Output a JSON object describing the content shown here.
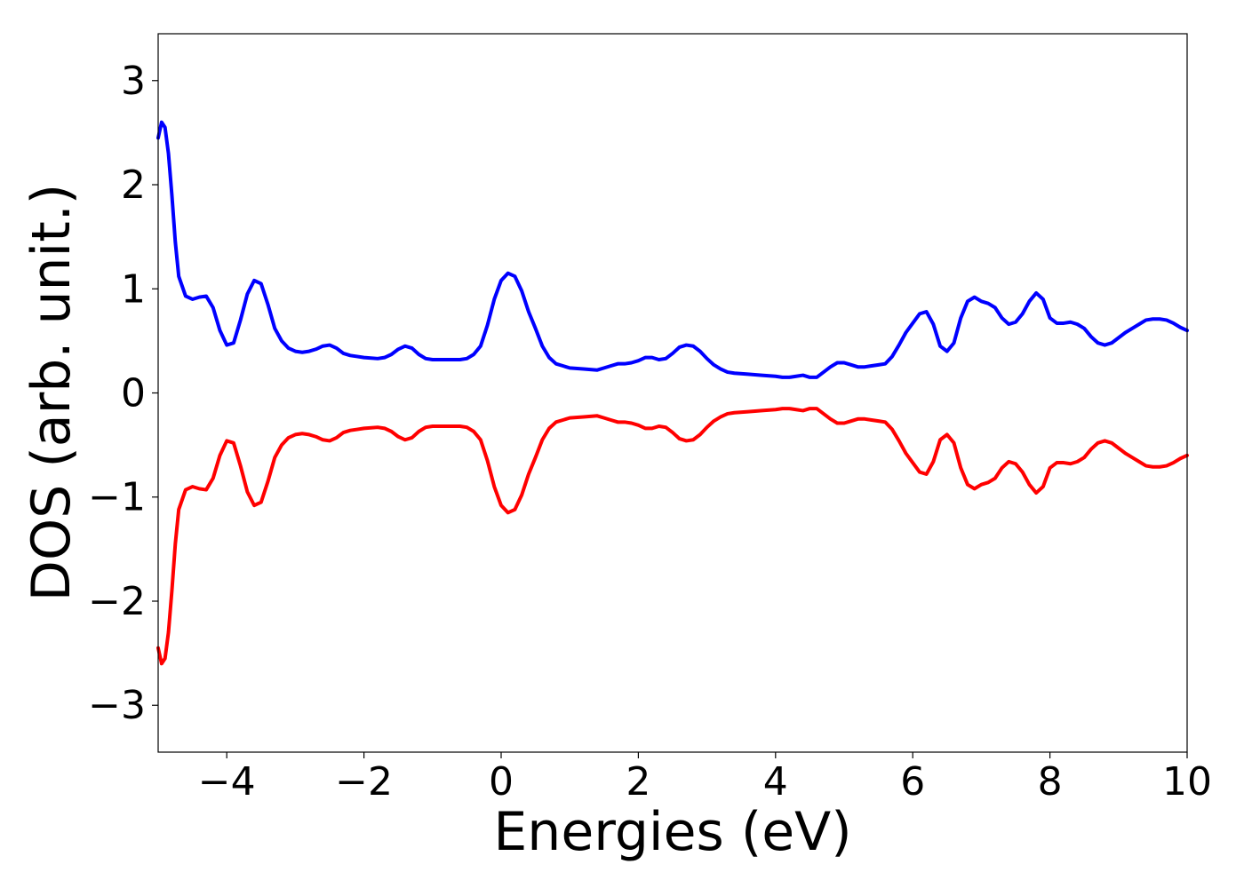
{
  "chart_data": {
    "type": "line",
    "title": "",
    "xlabel": "Energies (eV)",
    "ylabel": "DOS (arb. unit.)",
    "xlim": [
      -5,
      10
    ],
    "ylim": [
      -3.45,
      3.45
    ],
    "grid": false,
    "legend": "none",
    "x_ticks": [
      {
        "value": -4,
        "label": "−4"
      },
      {
        "value": -2,
        "label": "−2"
      },
      {
        "value": 0,
        "label": "0"
      },
      {
        "value": 2,
        "label": "2"
      },
      {
        "value": 4,
        "label": "4"
      },
      {
        "value": 6,
        "label": "6"
      },
      {
        "value": 8,
        "label": "8"
      },
      {
        "value": 10,
        "label": "10"
      }
    ],
    "y_ticks": [
      {
        "value": 3,
        "label": "3"
      },
      {
        "value": 2,
        "label": "2"
      },
      {
        "value": 1,
        "label": "1"
      },
      {
        "value": 0,
        "label": "0"
      },
      {
        "value": -1,
        "label": "−1"
      },
      {
        "value": -2,
        "label": "−2"
      },
      {
        "value": -3,
        "label": "−3"
      }
    ],
    "series": [
      {
        "color": "#0000ff",
        "points": [
          [
            -5.0,
            2.45
          ],
          [
            -4.95,
            2.6
          ],
          [
            -4.9,
            2.55
          ],
          [
            -4.85,
            2.3
          ],
          [
            -4.8,
            1.9
          ],
          [
            -4.75,
            1.45
          ],
          [
            -4.7,
            1.12
          ],
          [
            -4.6,
            0.93
          ],
          [
            -4.5,
            0.9
          ],
          [
            -4.4,
            0.92
          ],
          [
            -4.3,
            0.93
          ],
          [
            -4.2,
            0.82
          ],
          [
            -4.1,
            0.6
          ],
          [
            -4.0,
            0.46
          ],
          [
            -3.9,
            0.48
          ],
          [
            -3.8,
            0.7
          ],
          [
            -3.7,
            0.95
          ],
          [
            -3.6,
            1.08
          ],
          [
            -3.5,
            1.05
          ],
          [
            -3.4,
            0.85
          ],
          [
            -3.3,
            0.62
          ],
          [
            -3.2,
            0.5
          ],
          [
            -3.1,
            0.43
          ],
          [
            -3.0,
            0.4
          ],
          [
            -2.9,
            0.39
          ],
          [
            -2.8,
            0.4
          ],
          [
            -2.7,
            0.42
          ],
          [
            -2.6,
            0.45
          ],
          [
            -2.5,
            0.46
          ],
          [
            -2.4,
            0.43
          ],
          [
            -2.3,
            0.38
          ],
          [
            -2.2,
            0.36
          ],
          [
            -2.1,
            0.35
          ],
          [
            -2.0,
            0.34
          ],
          [
            -1.8,
            0.33
          ],
          [
            -1.7,
            0.34
          ],
          [
            -1.6,
            0.37
          ],
          [
            -1.5,
            0.42
          ],
          [
            -1.4,
            0.45
          ],
          [
            -1.3,
            0.43
          ],
          [
            -1.2,
            0.37
          ],
          [
            -1.1,
            0.33
          ],
          [
            -1.0,
            0.32
          ],
          [
            -0.8,
            0.32
          ],
          [
            -0.6,
            0.32
          ],
          [
            -0.5,
            0.33
          ],
          [
            -0.4,
            0.37
          ],
          [
            -0.3,
            0.45
          ],
          [
            -0.2,
            0.65
          ],
          [
            -0.1,
            0.9
          ],
          [
            0.0,
            1.08
          ],
          [
            0.1,
            1.15
          ],
          [
            0.2,
            1.12
          ],
          [
            0.3,
            0.98
          ],
          [
            0.4,
            0.78
          ],
          [
            0.5,
            0.62
          ],
          [
            0.6,
            0.45
          ],
          [
            0.7,
            0.34
          ],
          [
            0.8,
            0.28
          ],
          [
            0.9,
            0.26
          ],
          [
            1.0,
            0.24
          ],
          [
            1.2,
            0.23
          ],
          [
            1.4,
            0.22
          ],
          [
            1.5,
            0.24
          ],
          [
            1.6,
            0.26
          ],
          [
            1.7,
            0.28
          ],
          [
            1.8,
            0.28
          ],
          [
            1.9,
            0.29
          ],
          [
            2.0,
            0.31
          ],
          [
            2.1,
            0.34
          ],
          [
            2.2,
            0.34
          ],
          [
            2.3,
            0.32
          ],
          [
            2.4,
            0.33
          ],
          [
            2.5,
            0.38
          ],
          [
            2.6,
            0.44
          ],
          [
            2.7,
            0.46
          ],
          [
            2.8,
            0.45
          ],
          [
            2.9,
            0.4
          ],
          [
            3.0,
            0.33
          ],
          [
            3.1,
            0.27
          ],
          [
            3.2,
            0.23
          ],
          [
            3.3,
            0.2
          ],
          [
            3.4,
            0.19
          ],
          [
            3.6,
            0.18
          ],
          [
            3.8,
            0.17
          ],
          [
            4.0,
            0.16
          ],
          [
            4.1,
            0.15
          ],
          [
            4.2,
            0.15
          ],
          [
            4.3,
            0.16
          ],
          [
            4.4,
            0.17
          ],
          [
            4.5,
            0.15
          ],
          [
            4.6,
            0.15
          ],
          [
            4.7,
            0.2
          ],
          [
            4.8,
            0.25
          ],
          [
            4.9,
            0.29
          ],
          [
            5.0,
            0.29
          ],
          [
            5.1,
            0.27
          ],
          [
            5.2,
            0.25
          ],
          [
            5.3,
            0.25
          ],
          [
            5.4,
            0.26
          ],
          [
            5.5,
            0.27
          ],
          [
            5.6,
            0.28
          ],
          [
            5.7,
            0.35
          ],
          [
            5.8,
            0.46
          ],
          [
            5.9,
            0.58
          ],
          [
            6.0,
            0.67
          ],
          [
            6.1,
            0.76
          ],
          [
            6.2,
            0.78
          ],
          [
            6.3,
            0.66
          ],
          [
            6.4,
            0.45
          ],
          [
            6.5,
            0.4
          ],
          [
            6.6,
            0.48
          ],
          [
            6.7,
            0.72
          ],
          [
            6.8,
            0.88
          ],
          [
            6.9,
            0.92
          ],
          [
            7.0,
            0.88
          ],
          [
            7.1,
            0.86
          ],
          [
            7.2,
            0.82
          ],
          [
            7.3,
            0.72
          ],
          [
            7.4,
            0.66
          ],
          [
            7.5,
            0.68
          ],
          [
            7.6,
            0.76
          ],
          [
            7.7,
            0.88
          ],
          [
            7.8,
            0.96
          ],
          [
            7.9,
            0.9
          ],
          [
            8.0,
            0.72
          ],
          [
            8.1,
            0.67
          ],
          [
            8.2,
            0.67
          ],
          [
            8.3,
            0.68
          ],
          [
            8.4,
            0.66
          ],
          [
            8.5,
            0.62
          ],
          [
            8.6,
            0.54
          ],
          [
            8.7,
            0.48
          ],
          [
            8.8,
            0.46
          ],
          [
            8.9,
            0.48
          ],
          [
            9.0,
            0.53
          ],
          [
            9.1,
            0.58
          ],
          [
            9.2,
            0.62
          ],
          [
            9.3,
            0.66
          ],
          [
            9.4,
            0.7
          ],
          [
            9.5,
            0.71
          ],
          [
            9.6,
            0.71
          ],
          [
            9.7,
            0.7
          ],
          [
            9.8,
            0.67
          ],
          [
            9.9,
            0.63
          ],
          [
            10.0,
            0.6
          ]
        ]
      },
      {
        "color": "#ff0000",
        "points": [
          [
            -5.0,
            -2.45
          ],
          [
            -4.95,
            -2.6
          ],
          [
            -4.9,
            -2.55
          ],
          [
            -4.85,
            -2.3
          ],
          [
            -4.8,
            -1.9
          ],
          [
            -4.75,
            -1.45
          ],
          [
            -4.7,
            -1.12
          ],
          [
            -4.6,
            -0.93
          ],
          [
            -4.5,
            -0.9
          ],
          [
            -4.4,
            -0.92
          ],
          [
            -4.3,
            -0.93
          ],
          [
            -4.2,
            -0.82
          ],
          [
            -4.1,
            -0.6
          ],
          [
            -4.0,
            -0.46
          ],
          [
            -3.9,
            -0.48
          ],
          [
            -3.8,
            -0.7
          ],
          [
            -3.7,
            -0.95
          ],
          [
            -3.6,
            -1.08
          ],
          [
            -3.5,
            -1.05
          ],
          [
            -3.4,
            -0.85
          ],
          [
            -3.3,
            -0.62
          ],
          [
            -3.2,
            -0.5
          ],
          [
            -3.1,
            -0.43
          ],
          [
            -3.0,
            -0.4
          ],
          [
            -2.9,
            -0.39
          ],
          [
            -2.8,
            -0.4
          ],
          [
            -2.7,
            -0.42
          ],
          [
            -2.6,
            -0.45
          ],
          [
            -2.5,
            -0.46
          ],
          [
            -2.4,
            -0.43
          ],
          [
            -2.3,
            -0.38
          ],
          [
            -2.2,
            -0.36
          ],
          [
            -2.1,
            -0.35
          ],
          [
            -2.0,
            -0.34
          ],
          [
            -1.8,
            -0.33
          ],
          [
            -1.7,
            -0.34
          ],
          [
            -1.6,
            -0.37
          ],
          [
            -1.5,
            -0.42
          ],
          [
            -1.4,
            -0.45
          ],
          [
            -1.3,
            -0.43
          ],
          [
            -1.2,
            -0.37
          ],
          [
            -1.1,
            -0.33
          ],
          [
            -1.0,
            -0.32
          ],
          [
            -0.8,
            -0.32
          ],
          [
            -0.6,
            -0.32
          ],
          [
            -0.5,
            -0.33
          ],
          [
            -0.4,
            -0.37
          ],
          [
            -0.3,
            -0.45
          ],
          [
            -0.2,
            -0.65
          ],
          [
            -0.1,
            -0.9
          ],
          [
            0.0,
            -1.08
          ],
          [
            0.1,
            -1.15
          ],
          [
            0.2,
            -1.12
          ],
          [
            0.3,
            -0.98
          ],
          [
            0.4,
            -0.78
          ],
          [
            0.5,
            -0.62
          ],
          [
            0.6,
            -0.45
          ],
          [
            0.7,
            -0.34
          ],
          [
            0.8,
            -0.28
          ],
          [
            0.9,
            -0.26
          ],
          [
            1.0,
            -0.24
          ],
          [
            1.2,
            -0.23
          ],
          [
            1.4,
            -0.22
          ],
          [
            1.5,
            -0.24
          ],
          [
            1.6,
            -0.26
          ],
          [
            1.7,
            -0.28
          ],
          [
            1.8,
            -0.28
          ],
          [
            1.9,
            -0.29
          ],
          [
            2.0,
            -0.31
          ],
          [
            2.1,
            -0.34
          ],
          [
            2.2,
            -0.34
          ],
          [
            2.3,
            -0.32
          ],
          [
            2.4,
            -0.33
          ],
          [
            2.5,
            -0.38
          ],
          [
            2.6,
            -0.44
          ],
          [
            2.7,
            -0.46
          ],
          [
            2.8,
            -0.45
          ],
          [
            2.9,
            -0.4
          ],
          [
            3.0,
            -0.33
          ],
          [
            3.1,
            -0.27
          ],
          [
            3.2,
            -0.23
          ],
          [
            3.3,
            -0.2
          ],
          [
            3.4,
            -0.19
          ],
          [
            3.6,
            -0.18
          ],
          [
            3.8,
            -0.17
          ],
          [
            4.0,
            -0.16
          ],
          [
            4.1,
            -0.15
          ],
          [
            4.2,
            -0.15
          ],
          [
            4.3,
            -0.16
          ],
          [
            4.4,
            -0.17
          ],
          [
            4.5,
            -0.15
          ],
          [
            4.6,
            -0.15
          ],
          [
            4.7,
            -0.2
          ],
          [
            4.8,
            -0.25
          ],
          [
            4.9,
            -0.29
          ],
          [
            5.0,
            -0.29
          ],
          [
            5.1,
            -0.27
          ],
          [
            5.2,
            -0.25
          ],
          [
            5.3,
            -0.25
          ],
          [
            5.4,
            -0.26
          ],
          [
            5.5,
            -0.27
          ],
          [
            5.6,
            -0.28
          ],
          [
            5.7,
            -0.35
          ],
          [
            5.8,
            -0.46
          ],
          [
            5.9,
            -0.58
          ],
          [
            6.0,
            -0.67
          ],
          [
            6.1,
            -0.76
          ],
          [
            6.2,
            -0.78
          ],
          [
            6.3,
            -0.66
          ],
          [
            6.4,
            -0.45
          ],
          [
            6.5,
            -0.4
          ],
          [
            6.6,
            -0.48
          ],
          [
            6.7,
            -0.72
          ],
          [
            6.8,
            -0.88
          ],
          [
            6.9,
            -0.92
          ],
          [
            7.0,
            -0.88
          ],
          [
            7.1,
            -0.86
          ],
          [
            7.2,
            -0.82
          ],
          [
            7.3,
            -0.72
          ],
          [
            7.4,
            -0.66
          ],
          [
            7.5,
            -0.68
          ],
          [
            7.6,
            -0.76
          ],
          [
            7.7,
            -0.88
          ],
          [
            7.8,
            -0.96
          ],
          [
            7.9,
            -0.9
          ],
          [
            8.0,
            -0.72
          ],
          [
            8.1,
            -0.67
          ],
          [
            8.2,
            -0.67
          ],
          [
            8.3,
            -0.68
          ],
          [
            8.4,
            -0.66
          ],
          [
            8.5,
            -0.62
          ],
          [
            8.6,
            -0.54
          ],
          [
            8.7,
            -0.48
          ],
          [
            8.8,
            -0.46
          ],
          [
            8.9,
            -0.48
          ],
          [
            9.0,
            -0.53
          ],
          [
            9.1,
            -0.58
          ],
          [
            9.2,
            -0.62
          ],
          [
            9.3,
            -0.66
          ],
          [
            9.4,
            -0.7
          ],
          [
            9.5,
            -0.71
          ],
          [
            9.6,
            -0.71
          ],
          [
            9.7,
            -0.7
          ],
          [
            9.8,
            -0.67
          ],
          [
            9.9,
            -0.63
          ],
          [
            10.0,
            -0.6
          ]
        ]
      }
    ]
  }
}
